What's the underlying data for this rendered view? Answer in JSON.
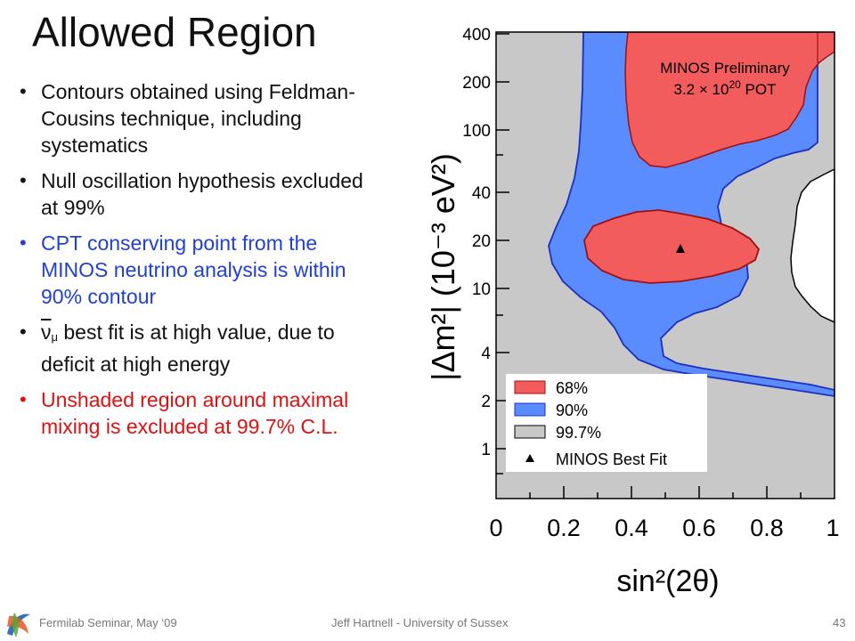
{
  "slide": {
    "title": "Allowed Region",
    "bullets": [
      {
        "text": "Contours obtained using Feldman-Cousins technique, including systematics",
        "color": "#111111"
      },
      {
        "text": "Null oscillation hypothesis excluded at 99%",
        "color": "#111111"
      },
      {
        "text": "CPT conserving point from the MINOS neutrino analysis is within 90% contour",
        "color": "#1f3fd6"
      },
      {
        "symbol": "ν",
        "subscript": "μ",
        "text": " best fit is at high value, due to deficit at high energy",
        "color": "#111111"
      },
      {
        "text": "Unshaded region around maximal mixing is excluded at 99.7% C.L.",
        "color": "#e01010"
      }
    ],
    "footer": {
      "left": "Fermilab Seminar, May ‘09",
      "center": "Jeff Hartnell - University of Sussex",
      "page": "43"
    }
  },
  "plot": {
    "y_label": "|Δm²| (10⁻³ eV²)",
    "x_label": "sin²(2θ)",
    "x_ticks": [
      "0",
      "0.2",
      "0.4",
      "0.6",
      "0.8",
      "1"
    ],
    "y_ticks": [
      "1",
      "2",
      "4",
      "10",
      "20",
      "40",
      "100",
      "200",
      "400"
    ],
    "annotation_line1": "MINOS Preliminary",
    "annotation_line2_pre": "3.2",
    "annotation_line2_mid": "10",
    "annotation_line2_exp": "20",
    "annotation_line2_post": "POT",
    "legend": [
      "68%",
      "90%",
      "99.7%",
      "MINOS Best Fit"
    ],
    "colors": {
      "c68": "#f25c5c",
      "c90": "#5a8cff",
      "c997": "#c8c8c8"
    },
    "best_fit": {
      "sin2_2theta": 0.55,
      "dm2": 18
    }
  }
}
